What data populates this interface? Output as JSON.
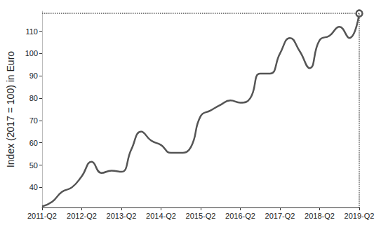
{
  "chart_data": {
    "type": "line",
    "y_label": "Index (2017 = 100) in Euro",
    "categories": [
      "2011-Q2",
      null,
      null,
      null,
      "2012-Q2",
      null,
      null,
      null,
      "2013-Q2",
      null,
      null,
      null,
      "2014-Q2",
      null,
      null,
      null,
      "2015-Q2",
      null,
      null,
      null,
      "2016-Q2",
      null,
      null,
      null,
      "2017-Q2",
      null,
      null,
      null,
      "2018-Q2",
      null,
      null,
      null,
      "2019-Q2"
    ],
    "values": [
      31.5,
      33.5,
      38,
      40,
      45,
      51.5,
      46.5,
      47.5,
      47,
      57,
      65,
      61,
      59,
      55.5,
      55.5,
      58,
      72,
      74.5,
      77,
      79,
      78,
      80,
      91,
      91,
      100,
      107,
      101,
      93.5,
      106,
      108,
      112,
      107,
      118
    ],
    "color": "#555555",
    "marker": "circle",
    "ylim": [
      31,
      119
    ],
    "yticks": [
      40,
      50,
      60,
      70,
      80,
      90,
      100,
      110
    ],
    "grid": false
  }
}
